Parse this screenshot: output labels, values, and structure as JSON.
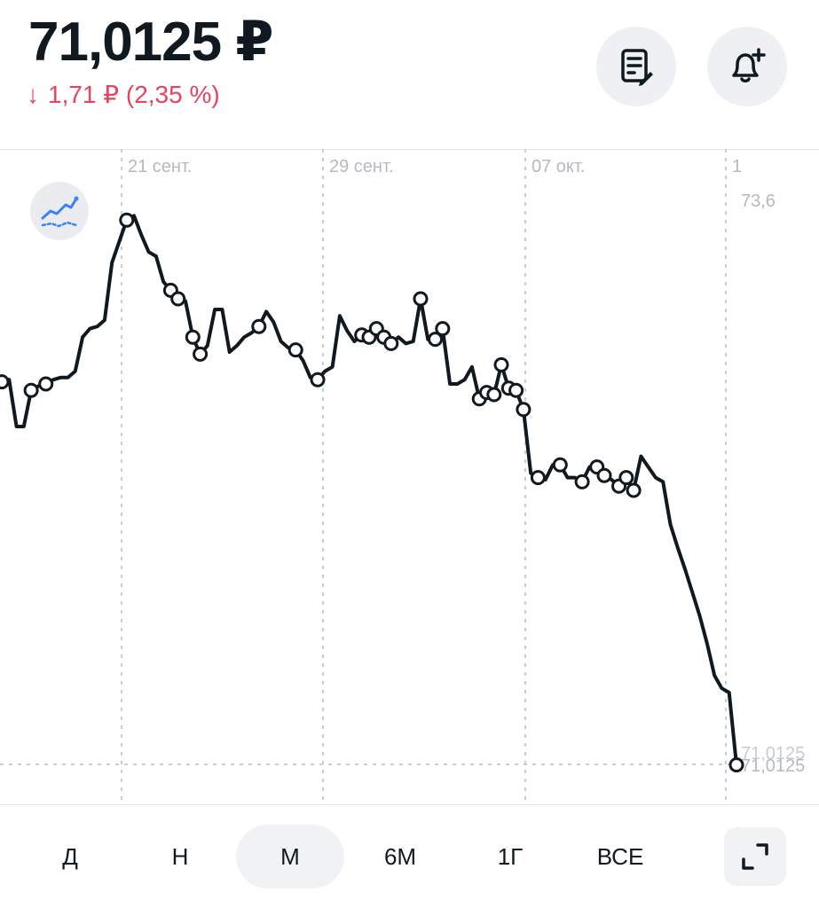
{
  "header": {
    "price": "71,0125 ₽",
    "change": "1,71 ₽ (2,35 %)",
    "change_color": "#e8445f",
    "arrow_icon": "arrow-down-icon"
  },
  "actions": {
    "note_icon": "note-edit-icon",
    "alert_icon": "bell-plus-icon"
  },
  "chart_data": {
    "type": "line",
    "x_tick_labels": [
      "21 сент.",
      "29 сент.",
      "07 окт.",
      "1"
    ],
    "y_top_label": "73,6",
    "current_value_label": "71,0125",
    "current_value": 71.0125,
    "line_color": "#101820",
    "grid": "vertical dashed at x ticks, horizontal dashed at current value",
    "series": [
      {
        "values": [
          72.81,
          72.82,
          72.6,
          72.6,
          72.77,
          72.79,
          72.8,
          72.82,
          72.83,
          72.83,
          72.86,
          73.02,
          73.06,
          73.07,
          73.1,
          73.37,
          73.47,
          73.57,
          73.59,
          73.5,
          73.42,
          73.4,
          73.28,
          73.24,
          73.2,
          73.19,
          73.02,
          72.94,
          72.98,
          73.15,
          73.15,
          72.95,
          72.98,
          73.02,
          73.04,
          73.07,
          73.14,
          73.09,
          73.0,
          72.97,
          72.96,
          72.91,
          72.83,
          72.82,
          72.86,
          72.88,
          73.12,
          73.05,
          73.0,
          73.03,
          73.02,
          73.06,
          73.02,
          72.99,
          73.02,
          72.99,
          73.0,
          73.2,
          73.01,
          73.01,
          73.06,
          72.8,
          72.8,
          72.82,
          72.88,
          72.73,
          72.76,
          72.75,
          72.89,
          72.78,
          72.77,
          72.68,
          72.38,
          72.36,
          72.35,
          72.42,
          72.42,
          72.36,
          72.36,
          72.34,
          72.41,
          72.41,
          72.37,
          72.35,
          72.32,
          72.36,
          72.3,
          72.46,
          72.41,
          72.36,
          72.34,
          72.14,
          72.03,
          71.93,
          71.82,
          71.71,
          71.58,
          71.43,
          71.37,
          71.35,
          71.01
        ]
      }
    ],
    "markers": [
      0,
      4,
      6,
      17,
      23,
      24,
      26,
      27,
      35,
      40,
      43,
      49,
      50,
      51,
      52,
      53,
      57,
      59,
      60,
      65,
      66,
      67,
      68,
      69,
      70,
      71,
      73,
      76,
      79,
      81,
      82,
      84,
      85,
      86,
      100
    ]
  },
  "periods": {
    "items": [
      "Д",
      "Н",
      "М",
      "6М",
      "1Г",
      "ВСЕ"
    ],
    "active": "М"
  },
  "controls": {
    "expand_icon": "expand-icon",
    "indicator_icon": "indicator-chart-icon"
  }
}
